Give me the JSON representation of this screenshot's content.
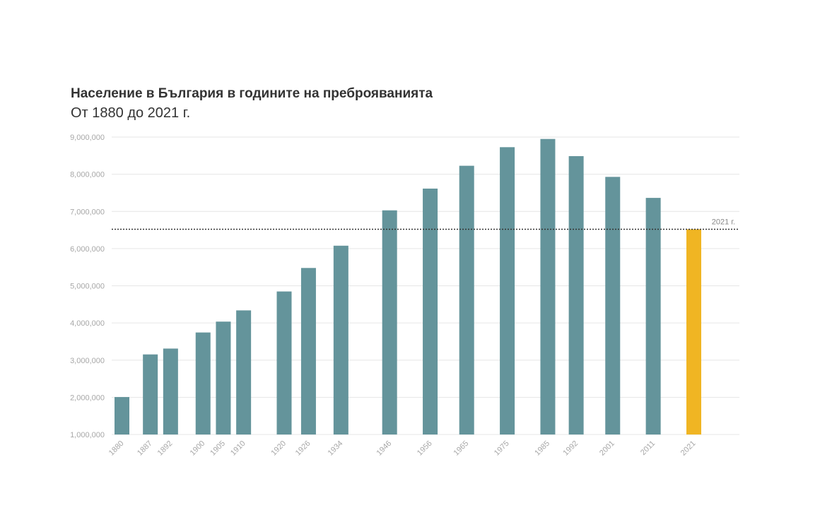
{
  "title": "Население в България в годините на преброяванията",
  "subtitle": "От 1880 до 2021 г.",
  "colors": {
    "bar": "#64949b",
    "highlight": "#f0b523",
    "grid": "#e6e6e6",
    "reference_line": "#333333"
  },
  "chart_data": {
    "type": "bar",
    "x_scale": "linear-year",
    "categories": [
      "1880",
      "1887",
      "1892",
      "1900",
      "1905",
      "1910",
      "1920",
      "1926",
      "1934",
      "1946",
      "1956",
      "1965",
      "1975",
      "1985",
      "1992",
      "2001",
      "2011",
      "2021"
    ],
    "values": [
      2008000,
      3154000,
      3311000,
      3744000,
      4036000,
      4338000,
      4847000,
      5479000,
      6078000,
      7029000,
      7614000,
      8228000,
      8728000,
      8949000,
      8487000,
      7929000,
      7364000,
      6520000
    ],
    "highlight_category": "2021",
    "ylim": [
      1000000,
      9000000
    ],
    "yticks": [
      1000000,
      2000000,
      3000000,
      4000000,
      5000000,
      6000000,
      7000000,
      8000000,
      9000000
    ],
    "ytick_labels": [
      "1,000,000",
      "2,000,000",
      "3,000,000",
      "4,000,000",
      "5,000,000",
      "6,000,000",
      "7,000,000",
      "8,000,000",
      "9,000,000"
    ],
    "grid": true,
    "reference_line": {
      "value": 6520000,
      "label": "2021 г.",
      "style": "dotted"
    },
    "title": "Население в България в годините на преброяванията",
    "subtitle": "От 1880 до 2021 г."
  }
}
